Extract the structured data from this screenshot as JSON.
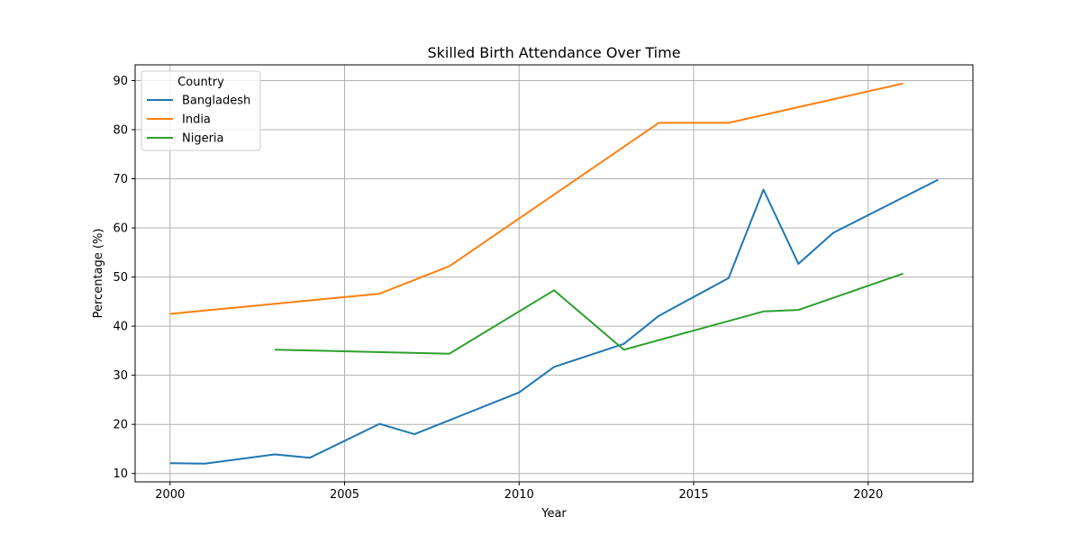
{
  "chart_data": {
    "type": "line",
    "title": "Skilled Birth Attendance Over Time",
    "xlabel": "Year",
    "ylabel": "Percentage (%)",
    "xlim": [
      1999,
      2023
    ],
    "ylim": [
      8.3,
      93.2
    ],
    "x_ticks": [
      2000,
      2005,
      2010,
      2015,
      2020
    ],
    "y_ticks": [
      10,
      20,
      30,
      40,
      50,
      60,
      70,
      80,
      90
    ],
    "grid": true,
    "legend": {
      "title": "Country",
      "placement": "top-left"
    },
    "series": [
      {
        "name": "Bangladesh",
        "color": "#1f77b4",
        "points": [
          [
            2000,
            12.1
          ],
          [
            2001,
            12.0
          ],
          [
            2003,
            13.9
          ],
          [
            2004,
            13.2
          ],
          [
            2006,
            20.1
          ],
          [
            2007,
            18.0
          ],
          [
            2010,
            26.5
          ],
          [
            2011,
            31.7
          ],
          [
            2013,
            36.4
          ],
          [
            2014,
            42.1
          ],
          [
            2016,
            49.8
          ],
          [
            2017,
            67.8
          ],
          [
            2018,
            52.7
          ],
          [
            2019,
            59.0
          ],
          [
            2022,
            69.8
          ]
        ]
      },
      {
        "name": "India",
        "color": "#ff7f0e",
        "points": [
          [
            2000,
            42.5
          ],
          [
            2006,
            46.6
          ],
          [
            2008,
            52.2
          ],
          [
            2014,
            81.4
          ],
          [
            2016,
            81.4
          ],
          [
            2021,
            89.4
          ]
        ]
      },
      {
        "name": "Nigeria",
        "color": "#2ca02c",
        "points": [
          [
            2003,
            35.2
          ],
          [
            2008,
            34.4
          ],
          [
            2011,
            47.3
          ],
          [
            2013,
            35.2
          ],
          [
            2017,
            43.0
          ],
          [
            2018,
            43.3
          ],
          [
            2021,
            50.7
          ]
        ]
      }
    ]
  }
}
